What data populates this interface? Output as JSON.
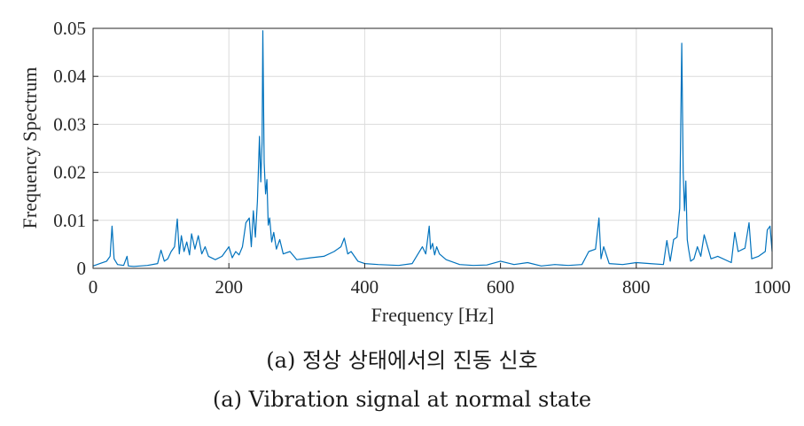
{
  "chart_data": {
    "type": "line",
    "xlabel": "Frequency [Hz]",
    "ylabel": "Frequency Spectrum",
    "xlim": [
      0,
      1000
    ],
    "ylim": [
      0,
      0.05
    ],
    "xticks": [
      0,
      200,
      400,
      600,
      800,
      1000
    ],
    "xtick_labels": [
      "0",
      "200",
      "400",
      "600",
      "800",
      "1000"
    ],
    "yticks": [
      0,
      0.01,
      0.02,
      0.03,
      0.04,
      0.05
    ],
    "ytick_labels": [
      "0",
      "0.01",
      "0.02",
      "0.03",
      "0.04",
      "0.05"
    ],
    "grid": true,
    "line_color": "#0072BD",
    "series": [
      {
        "x": [
          0,
          10,
          20,
          25,
          28,
          31,
          36,
          45,
          50,
          52,
          60,
          80,
          95,
          100,
          105,
          110,
          115,
          120,
          124,
          127,
          130,
          134,
          138,
          142,
          145,
          150,
          155,
          160,
          165,
          170,
          180,
          190,
          200,
          205,
          210,
          215,
          220,
          225,
          230,
          233,
          236,
          239,
          242,
          245,
          247,
          249,
          250,
          252,
          254,
          256,
          258,
          260,
          263,
          266,
          270,
          275,
          280,
          290,
          300,
          320,
          340,
          355,
          365,
          370,
          375,
          380,
          390,
          400,
          420,
          450,
          470,
          485,
          490,
          495,
          497,
          500,
          503,
          506,
          510,
          520,
          540,
          560,
          580,
          600,
          620,
          640,
          660,
          680,
          700,
          720,
          730,
          740,
          745,
          748,
          752,
          760,
          780,
          800,
          820,
          840,
          845,
          850,
          855,
          860,
          864,
          867,
          869,
          871,
          873,
          875,
          877,
          880,
          885,
          890,
          895,
          900,
          910,
          920,
          940,
          945,
          950,
          960,
          966,
          970,
          980,
          990,
          993,
          997,
          1000
        ],
        "y": [
          0.0005,
          0.001,
          0.0015,
          0.0025,
          0.0088,
          0.002,
          0.0008,
          0.0006,
          0.0025,
          0.0005,
          0.0004,
          0.0006,
          0.001,
          0.0038,
          0.0015,
          0.002,
          0.0035,
          0.0045,
          0.0103,
          0.003,
          0.0068,
          0.0035,
          0.0055,
          0.0028,
          0.0072,
          0.004,
          0.0068,
          0.003,
          0.0045,
          0.0025,
          0.0018,
          0.0025,
          0.0045,
          0.0022,
          0.0035,
          0.0028,
          0.0045,
          0.0095,
          0.0105,
          0.0045,
          0.012,
          0.0065,
          0.014,
          0.0275,
          0.018,
          0.0265,
          0.0495,
          0.022,
          0.0155,
          0.0185,
          0.009,
          0.0105,
          0.0055,
          0.0075,
          0.004,
          0.006,
          0.003,
          0.0035,
          0.0018,
          0.0022,
          0.0025,
          0.0035,
          0.0045,
          0.0063,
          0.003,
          0.0035,
          0.0015,
          0.001,
          0.0008,
          0.0006,
          0.001,
          0.0045,
          0.003,
          0.0088,
          0.004,
          0.0052,
          0.0028,
          0.0045,
          0.003,
          0.0018,
          0.0008,
          0.0006,
          0.0007,
          0.0015,
          0.0008,
          0.0012,
          0.0005,
          0.0008,
          0.0006,
          0.0008,
          0.0035,
          0.004,
          0.0105,
          0.002,
          0.0045,
          0.001,
          0.0008,
          0.0012,
          0.001,
          0.0008,
          0.0058,
          0.0015,
          0.006,
          0.0065,
          0.0125,
          0.0469,
          0.02,
          0.012,
          0.0182,
          0.006,
          0.004,
          0.0015,
          0.002,
          0.0045,
          0.0025,
          0.007,
          0.002,
          0.0025,
          0.0012,
          0.0075,
          0.0035,
          0.0042,
          0.0095,
          0.002,
          0.0025,
          0.0035,
          0.008,
          0.0088,
          0.0035
        ]
      }
    ]
  },
  "captions": {
    "korean": "(a) 정상 상태에서의 진동 신호",
    "english": "(a) Vibration signal at normal state"
  }
}
